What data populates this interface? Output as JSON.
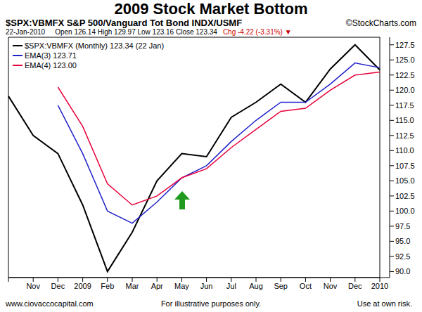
{
  "chart_data": {
    "type": "line",
    "title": "2009 Stock Market Bottom",
    "symbol_line": {
      "left": "$SPX:VBMFX S&P 500/Vanguard Tot Bond INDX/USMF",
      "right": "©StockCharts.com"
    },
    "quote_line": {
      "date": "22-Jan-2010",
      "prices": "Open 126.14 High 129.97 Low 123.16 Close 123.34",
      "change": "Chg -4.22 (-3.31%) ▼"
    },
    "footer": [
      "www.ciovaccocapital.com",
      "For illustrative purposes only.",
      "Use at own risk."
    ],
    "categories": [
      null,
      "Nov",
      "Dec",
      "2009",
      "Feb",
      "Mar",
      "Apr",
      "May",
      "Jun",
      "Jul",
      "Aug",
      "Sep",
      "Oct",
      "Nov",
      "Dec",
      "2010"
    ],
    "series": [
      {
        "name": "$SPX:VBMFX (Monthly) 123.34 (22 Jan)",
        "color": "#000000",
        "values": [
          119,
          112.5,
          109.5,
          101,
          90,
          96.5,
          105,
          109.5,
          109,
          115.5,
          118,
          121,
          118,
          123.5,
          127.5,
          123.34
        ]
      },
      {
        "name": "EMA(3) 123.71",
        "color": "#2222cc",
        "values": [
          null,
          null,
          117.5,
          109.5,
          100,
          98,
          101.5,
          105.5,
          107.5,
          111.5,
          115,
          118,
          118,
          121,
          124.5,
          123.71
        ]
      },
      {
        "name": "EMA(4) 123.00",
        "color": "#e8003a",
        "values": [
          null,
          null,
          120.5,
          114,
          104.5,
          101,
          102.5,
          105.5,
          107,
          110.5,
          113.5,
          116.5,
          117,
          120,
          122.5,
          123.0
        ]
      }
    ],
    "ylim": [
      89,
      128.75
    ],
    "yticks": [
      {
        "value": 90,
        "label": "90.0"
      },
      {
        "value": 92.5,
        "label": "92.5"
      },
      {
        "value": 95,
        "label": "95.0"
      },
      {
        "value": 97.5,
        "label": "97.5"
      },
      {
        "value": 100,
        "label": "100.0"
      },
      {
        "value": 102.5,
        "label": "102.5"
      },
      {
        "value": 105,
        "label": "105.0"
      },
      {
        "value": 107.5,
        "label": "107.5"
      },
      {
        "value": 110,
        "label": "110.0"
      },
      {
        "value": 112.5,
        "label": "112.5"
      },
      {
        "value": 115,
        "label": "115.0"
      },
      {
        "value": 117.5,
        "label": "117.5"
      },
      {
        "value": 120,
        "label": "120.0"
      },
      {
        "value": 122.5,
        "label": "122.5"
      },
      {
        "value": 125,
        "label": "125.0"
      },
      {
        "value": 127.5,
        "label": "127.5"
      }
    ],
    "grid": false,
    "legend": "upper left"
  }
}
